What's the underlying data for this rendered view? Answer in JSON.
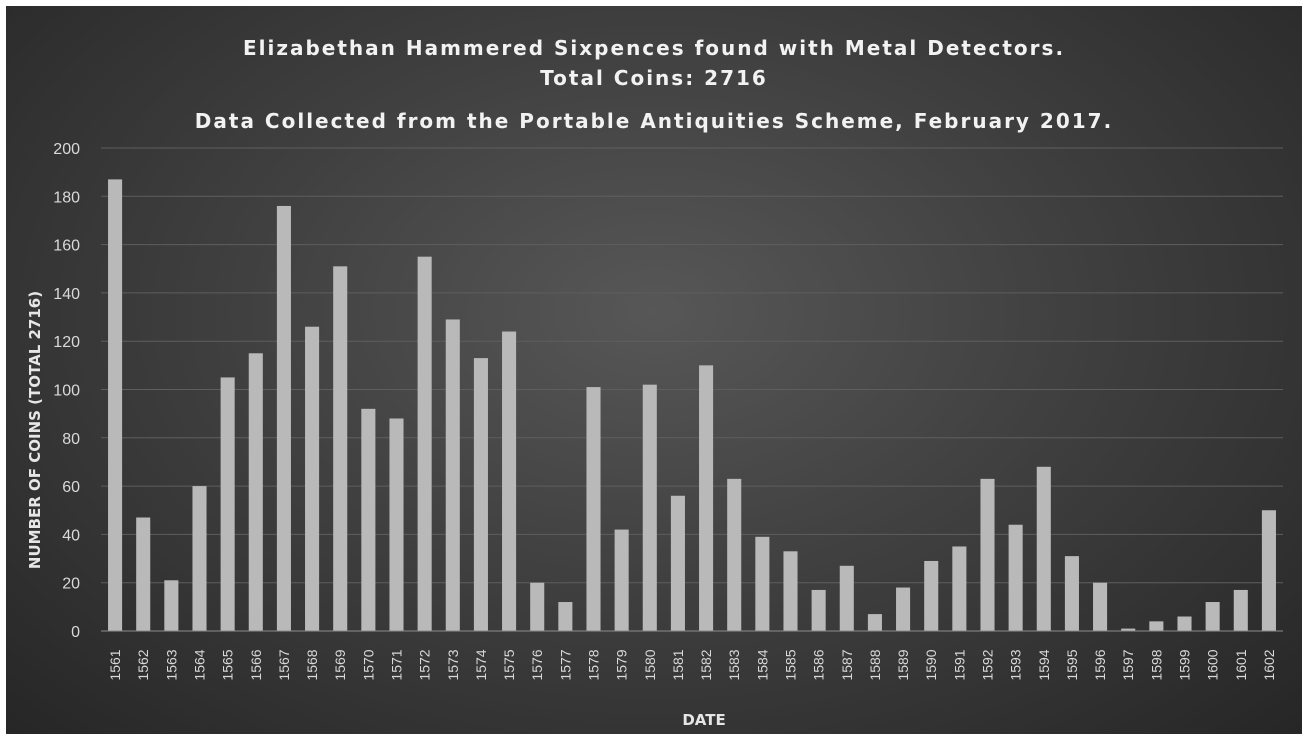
{
  "chart_data": {
    "type": "bar",
    "title_lines": [
      "Elizabethan Hammered Sixpences found with Metal Detectors.",
      "Total Coins: 2716",
      "Data Collected from the Portable Antiquities Scheme, February 2017."
    ],
    "xlabel": "DATE",
    "ylabel": "NUMBER OF COINS (TOTAL 2716)",
    "ylim": [
      0,
      200
    ],
    "yticks": [
      0,
      20,
      40,
      60,
      80,
      100,
      120,
      140,
      160,
      180,
      200
    ],
    "grid": true,
    "categories": [
      "1561",
      "1562",
      "1563",
      "1564",
      "1565",
      "1566",
      "1567",
      "1568",
      "1569",
      "1570",
      "1571",
      "1572",
      "1573",
      "1574",
      "1575",
      "1576",
      "1577",
      "1578",
      "1579",
      "1580",
      "1581",
      "1582",
      "1583",
      "1584",
      "1585",
      "1586",
      "1587",
      "1588",
      "1589",
      "1590",
      "1591",
      "1592",
      "1593",
      "1594",
      "1595",
      "1596",
      "1597",
      "1598",
      "1599",
      "1600",
      "1601",
      "1602"
    ],
    "values": [
      187,
      47,
      21,
      60,
      105,
      115,
      176,
      126,
      151,
      92,
      88,
      155,
      129,
      113,
      124,
      20,
      12,
      101,
      42,
      102,
      56,
      110,
      63,
      39,
      33,
      17,
      27,
      7,
      18,
      29,
      35,
      63,
      44,
      68,
      31,
      20,
      1,
      4,
      6,
      12,
      17,
      50
    ],
    "colors": {
      "bar": "#b9b9b9",
      "grid": "#5e5e5e",
      "axis": "#8c8c8c"
    }
  }
}
